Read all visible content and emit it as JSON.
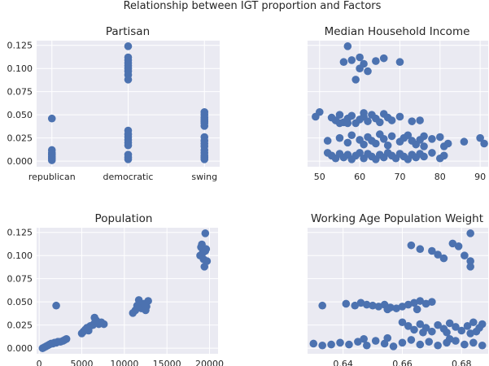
{
  "figure": {
    "title": "Relationship between IGT proportion and Factors"
  },
  "colors": {
    "panel_background": "#eaeaf2",
    "grid": "#ffffff",
    "point": "#4c72b0",
    "text": "#262626"
  },
  "chart_data": [
    {
      "type": "scatter",
      "title": "Partisan",
      "xlabel": "",
      "ylabel": "",
      "x_type": "categorical",
      "categories": [
        "republican",
        "democratic",
        "swing"
      ],
      "ylim": [
        -0.006,
        0.13
      ],
      "y_ticks": [
        0.0,
        0.025,
        0.05,
        0.075,
        0.1,
        0.125
      ],
      "y_tick_labels": [
        "0.000",
        "0.025",
        "0.050",
        "0.075",
        "0.100",
        "0.125"
      ],
      "grid": true,
      "points": [
        {
          "x": "republican",
          "y": 0.046
        },
        {
          "x": "republican",
          "y": 0.012
        },
        {
          "x": "republican",
          "y": 0.009
        },
        {
          "x": "republican",
          "y": 0.007
        },
        {
          "x": "republican",
          "y": 0.005
        },
        {
          "x": "republican",
          "y": 0.003
        },
        {
          "x": "republican",
          "y": 0.001
        },
        {
          "x": "democratic",
          "y": 0.124
        },
        {
          "x": "democratic",
          "y": 0.112
        },
        {
          "x": "democratic",
          "y": 0.109
        },
        {
          "x": "democratic",
          "y": 0.106
        },
        {
          "x": "democratic",
          "y": 0.103
        },
        {
          "x": "democratic",
          "y": 0.1
        },
        {
          "x": "democratic",
          "y": 0.097
        },
        {
          "x": "democratic",
          "y": 0.093
        },
        {
          "x": "democratic",
          "y": 0.088
        },
        {
          "x": "democratic",
          "y": 0.033
        },
        {
          "x": "democratic",
          "y": 0.029
        },
        {
          "x": "democratic",
          "y": 0.026
        },
        {
          "x": "democratic",
          "y": 0.023
        },
        {
          "x": "democratic",
          "y": 0.02
        },
        {
          "x": "democratic",
          "y": 0.017
        },
        {
          "x": "democratic",
          "y": 0.007
        },
        {
          "x": "democratic",
          "y": 0.004
        },
        {
          "x": "democratic",
          "y": 0.002
        },
        {
          "x": "swing",
          "y": 0.053
        },
        {
          "x": "swing",
          "y": 0.05
        },
        {
          "x": "swing",
          "y": 0.047
        },
        {
          "x": "swing",
          "y": 0.045
        },
        {
          "x": "swing",
          "y": 0.043
        },
        {
          "x": "swing",
          "y": 0.041
        },
        {
          "x": "swing",
          "y": 0.038
        },
        {
          "x": "swing",
          "y": 0.026
        },
        {
          "x": "swing",
          "y": 0.022
        },
        {
          "x": "swing",
          "y": 0.019
        },
        {
          "x": "swing",
          "y": 0.016
        },
        {
          "x": "swing",
          "y": 0.012
        },
        {
          "x": "swing",
          "y": 0.009
        },
        {
          "x": "swing",
          "y": 0.006
        },
        {
          "x": "swing",
          "y": 0.004
        },
        {
          "x": "swing",
          "y": 0.002
        }
      ]
    },
    {
      "type": "scatter",
      "title": "Median Household Income",
      "xlabel": "",
      "ylabel": "",
      "xlim": [
        47,
        92
      ],
      "x_ticks": [
        50,
        60,
        70,
        80,
        90
      ],
      "x_tick_labels": [
        "50",
        "60",
        "70",
        "80",
        "90"
      ],
      "ylim": [
        -0.006,
        0.13
      ],
      "grid": true,
      "points": [
        {
          "x": 57,
          "y": 0.124
        },
        {
          "x": 56,
          "y": 0.107
        },
        {
          "x": 58,
          "y": 0.109
        },
        {
          "x": 60,
          "y": 0.112
        },
        {
          "x": 61,
          "y": 0.105
        },
        {
          "x": 60,
          "y": 0.1
        },
        {
          "x": 62,
          "y": 0.097
        },
        {
          "x": 59,
          "y": 0.088
        },
        {
          "x": 64,
          "y": 0.108
        },
        {
          "x": 66,
          "y": 0.111
        },
        {
          "x": 70,
          "y": 0.107
        },
        {
          "x": 49,
          "y": 0.048
        },
        {
          "x": 50,
          "y": 0.053
        },
        {
          "x": 53,
          "y": 0.047
        },
        {
          "x": 54,
          "y": 0.044
        },
        {
          "x": 55,
          "y": 0.05
        },
        {
          "x": 56,
          "y": 0.042
        },
        {
          "x": 57,
          "y": 0.046
        },
        {
          "x": 58,
          "y": 0.049
        },
        {
          "x": 59,
          "y": 0.041
        },
        {
          "x": 60,
          "y": 0.045
        },
        {
          "x": 61,
          "y": 0.048
        },
        {
          "x": 62,
          "y": 0.043
        },
        {
          "x": 63,
          "y": 0.05
        },
        {
          "x": 64,
          "y": 0.046
        },
        {
          "x": 65,
          "y": 0.042
        },
        {
          "x": 66,
          "y": 0.051
        },
        {
          "x": 67,
          "y": 0.047
        },
        {
          "x": 68,
          "y": 0.044
        },
        {
          "x": 70,
          "y": 0.048
        },
        {
          "x": 73,
          "y": 0.043
        },
        {
          "x": 75,
          "y": 0.044
        },
        {
          "x": 57,
          "y": 0.041
        },
        {
          "x": 61,
          "y": 0.052
        },
        {
          "x": 55,
          "y": 0.041
        },
        {
          "x": 52,
          "y": 0.022
        },
        {
          "x": 55,
          "y": 0.025
        },
        {
          "x": 57,
          "y": 0.02
        },
        {
          "x": 58,
          "y": 0.028
        },
        {
          "x": 60,
          "y": 0.023
        },
        {
          "x": 61,
          "y": 0.018
        },
        {
          "x": 62,
          "y": 0.026
        },
        {
          "x": 63,
          "y": 0.022
        },
        {
          "x": 64,
          "y": 0.019
        },
        {
          "x": 65,
          "y": 0.029
        },
        {
          "x": 66,
          "y": 0.024
        },
        {
          "x": 67,
          "y": 0.017
        },
        {
          "x": 68,
          "y": 0.027
        },
        {
          "x": 70,
          "y": 0.021
        },
        {
          "x": 71,
          "y": 0.025
        },
        {
          "x": 72,
          "y": 0.028
        },
        {
          "x": 73,
          "y": 0.022
        },
        {
          "x": 74,
          "y": 0.018
        },
        {
          "x": 75,
          "y": 0.023
        },
        {
          "x": 76,
          "y": 0.027
        },
        {
          "x": 78,
          "y": 0.024
        },
        {
          "x": 80,
          "y": 0.026
        },
        {
          "x": 82,
          "y": 0.019
        },
        {
          "x": 86,
          "y": 0.021
        },
        {
          "x": 90,
          "y": 0.025
        },
        {
          "x": 91,
          "y": 0.019
        },
        {
          "x": 81,
          "y": 0.016
        },
        {
          "x": 76,
          "y": 0.016
        },
        {
          "x": 52,
          "y": 0.009
        },
        {
          "x": 53,
          "y": 0.006
        },
        {
          "x": 54,
          "y": 0.003
        },
        {
          "x": 55,
          "y": 0.008
        },
        {
          "x": 56,
          "y": 0.004
        },
        {
          "x": 57,
          "y": 0.007
        },
        {
          "x": 58,
          "y": 0.002
        },
        {
          "x": 59,
          "y": 0.006
        },
        {
          "x": 60,
          "y": 0.009
        },
        {
          "x": 61,
          "y": 0.003
        },
        {
          "x": 62,
          "y": 0.008
        },
        {
          "x": 63,
          "y": 0.005
        },
        {
          "x": 64,
          "y": 0.002
        },
        {
          "x": 65,
          "y": 0.007
        },
        {
          "x": 66,
          "y": 0.004
        },
        {
          "x": 67,
          "y": 0.009
        },
        {
          "x": 68,
          "y": 0.006
        },
        {
          "x": 69,
          "y": 0.003
        },
        {
          "x": 70,
          "y": 0.008
        },
        {
          "x": 71,
          "y": 0.005
        },
        {
          "x": 72,
          "y": 0.002
        },
        {
          "x": 73,
          "y": 0.007
        },
        {
          "x": 74,
          "y": 0.004
        },
        {
          "x": 75,
          "y": 0.008
        },
        {
          "x": 76,
          "y": 0.005
        },
        {
          "x": 78,
          "y": 0.009
        },
        {
          "x": 81,
          "y": 0.006
        },
        {
          "x": 80,
          "y": 0.003
        }
      ]
    },
    {
      "type": "scatter",
      "title": "Population",
      "xlabel": "",
      "ylabel": "",
      "xlim": [
        -300,
        21000
      ],
      "x_ticks": [
        0,
        5000,
        10000,
        15000,
        20000
      ],
      "x_tick_labels": [
        "0",
        "5000",
        "10000",
        "15000",
        "20000"
      ],
      "ylim": [
        -0.006,
        0.13
      ],
      "y_ticks": [
        0.0,
        0.025,
        0.05,
        0.075,
        0.1,
        0.125
      ],
      "y_tick_labels": [
        "0.000",
        "0.025",
        "0.050",
        "0.075",
        "0.100",
        "0.125"
      ],
      "grid": true,
      "points": [
        {
          "x": 400,
          "y": 0.0
        },
        {
          "x": 600,
          "y": 0.001
        },
        {
          "x": 800,
          "y": 0.002
        },
        {
          "x": 1000,
          "y": 0.003
        },
        {
          "x": 1200,
          "y": 0.004
        },
        {
          "x": 1400,
          "y": 0.005
        },
        {
          "x": 1600,
          "y": 0.005
        },
        {
          "x": 1800,
          "y": 0.006
        },
        {
          "x": 2000,
          "y": 0.006
        },
        {
          "x": 2200,
          "y": 0.007
        },
        {
          "x": 2500,
          "y": 0.007
        },
        {
          "x": 2800,
          "y": 0.008
        },
        {
          "x": 3000,
          "y": 0.009
        },
        {
          "x": 3200,
          "y": 0.01
        },
        {
          "x": 2000,
          "y": 0.046
        },
        {
          "x": 5000,
          "y": 0.016
        },
        {
          "x": 5200,
          "y": 0.018
        },
        {
          "x": 5400,
          "y": 0.02
        },
        {
          "x": 5600,
          "y": 0.022
        },
        {
          "x": 5800,
          "y": 0.019
        },
        {
          "x": 6000,
          "y": 0.024
        },
        {
          "x": 6300,
          "y": 0.025
        },
        {
          "x": 6500,
          "y": 0.027
        },
        {
          "x": 6700,
          "y": 0.03
        },
        {
          "x": 7000,
          "y": 0.026
        },
        {
          "x": 7300,
          "y": 0.028
        },
        {
          "x": 7600,
          "y": 0.026
        },
        {
          "x": 6500,
          "y": 0.033
        },
        {
          "x": 11000,
          "y": 0.038
        },
        {
          "x": 11300,
          "y": 0.041
        },
        {
          "x": 11500,
          "y": 0.046
        },
        {
          "x": 11700,
          "y": 0.052
        },
        {
          "x": 12000,
          "y": 0.043
        },
        {
          "x": 12300,
          "y": 0.048
        },
        {
          "x": 12600,
          "y": 0.045
        },
        {
          "x": 12800,
          "y": 0.051
        },
        {
          "x": 12500,
          "y": 0.041
        },
        {
          "x": 18900,
          "y": 0.1
        },
        {
          "x": 19000,
          "y": 0.109
        },
        {
          "x": 19100,
          "y": 0.112
        },
        {
          "x": 19200,
          "y": 0.103
        },
        {
          "x": 19300,
          "y": 0.096
        },
        {
          "x": 19400,
          "y": 0.088
        },
        {
          "x": 19500,
          "y": 0.124
        },
        {
          "x": 19600,
          "y": 0.107
        },
        {
          "x": 19700,
          "y": 0.094
        },
        {
          "x": 19500,
          "y": 0.105
        }
      ]
    },
    {
      "type": "scatter",
      "title": "Working Age Population Weight",
      "xlabel": "",
      "ylabel": "",
      "xlim": [
        0.628,
        0.689
      ],
      "x_ticks": [
        0.64,
        0.66,
        0.68
      ],
      "x_tick_labels": [
        "0.64",
        "0.66",
        "0.68"
      ],
      "ylim": [
        -0.006,
        0.13
      ],
      "grid": true,
      "points": [
        {
          "x": 0.683,
          "y": 0.124
        },
        {
          "x": 0.663,
          "y": 0.111
        },
        {
          "x": 0.666,
          "y": 0.107
        },
        {
          "x": 0.67,
          "y": 0.105
        },
        {
          "x": 0.672,
          "y": 0.101
        },
        {
          "x": 0.674,
          "y": 0.097
        },
        {
          "x": 0.677,
          "y": 0.113
        },
        {
          "x": 0.679,
          "y": 0.11
        },
        {
          "x": 0.681,
          "y": 0.1
        },
        {
          "x": 0.683,
          "y": 0.094
        },
        {
          "x": 0.683,
          "y": 0.088
        },
        {
          "x": 0.633,
          "y": 0.046
        },
        {
          "x": 0.641,
          "y": 0.048
        },
        {
          "x": 0.644,
          "y": 0.046
        },
        {
          "x": 0.646,
          "y": 0.049
        },
        {
          "x": 0.648,
          "y": 0.047
        },
        {
          "x": 0.65,
          "y": 0.046
        },
        {
          "x": 0.652,
          "y": 0.045
        },
        {
          "x": 0.654,
          "y": 0.047
        },
        {
          "x": 0.656,
          "y": 0.044
        },
        {
          "x": 0.658,
          "y": 0.043
        },
        {
          "x": 0.66,
          "y": 0.045
        },
        {
          "x": 0.662,
          "y": 0.047
        },
        {
          "x": 0.664,
          "y": 0.049
        },
        {
          "x": 0.666,
          "y": 0.051
        },
        {
          "x": 0.668,
          "y": 0.048
        },
        {
          "x": 0.67,
          "y": 0.05
        },
        {
          "x": 0.655,
          "y": 0.042
        },
        {
          "x": 0.665,
          "y": 0.042
        },
        {
          "x": 0.66,
          "y": 0.028
        },
        {
          "x": 0.662,
          "y": 0.024
        },
        {
          "x": 0.664,
          "y": 0.02
        },
        {
          "x": 0.666,
          "y": 0.026
        },
        {
          "x": 0.668,
          "y": 0.022
        },
        {
          "x": 0.67,
          "y": 0.018
        },
        {
          "x": 0.672,
          "y": 0.025
        },
        {
          "x": 0.674,
          "y": 0.021
        },
        {
          "x": 0.676,
          "y": 0.027
        },
        {
          "x": 0.678,
          "y": 0.023
        },
        {
          "x": 0.68,
          "y": 0.019
        },
        {
          "x": 0.682,
          "y": 0.024
        },
        {
          "x": 0.684,
          "y": 0.028
        },
        {
          "x": 0.686,
          "y": 0.022
        },
        {
          "x": 0.687,
          "y": 0.026
        },
        {
          "x": 0.685,
          "y": 0.018
        },
        {
          "x": 0.683,
          "y": 0.016
        },
        {
          "x": 0.675,
          "y": 0.017
        },
        {
          "x": 0.667,
          "y": 0.017
        },
        {
          "x": 0.63,
          "y": 0.005
        },
        {
          "x": 0.633,
          "y": 0.003
        },
        {
          "x": 0.636,
          "y": 0.004
        },
        {
          "x": 0.639,
          "y": 0.006
        },
        {
          "x": 0.642,
          "y": 0.004
        },
        {
          "x": 0.645,
          "y": 0.007
        },
        {
          "x": 0.648,
          "y": 0.003
        },
        {
          "x": 0.651,
          "y": 0.008
        },
        {
          "x": 0.654,
          "y": 0.005
        },
        {
          "x": 0.657,
          "y": 0.002
        },
        {
          "x": 0.66,
          "y": 0.006
        },
        {
          "x": 0.663,
          "y": 0.009
        },
        {
          "x": 0.666,
          "y": 0.004
        },
        {
          "x": 0.669,
          "y": 0.007
        },
        {
          "x": 0.672,
          "y": 0.003
        },
        {
          "x": 0.675,
          "y": 0.006
        },
        {
          "x": 0.678,
          "y": 0.008
        },
        {
          "x": 0.681,
          "y": 0.004
        },
        {
          "x": 0.684,
          "y": 0.006
        },
        {
          "x": 0.687,
          "y": 0.003
        },
        {
          "x": 0.647,
          "y": 0.01
        },
        {
          "x": 0.655,
          "y": 0.011
        },
        {
          "x": 0.676,
          "y": 0.01
        }
      ]
    }
  ]
}
